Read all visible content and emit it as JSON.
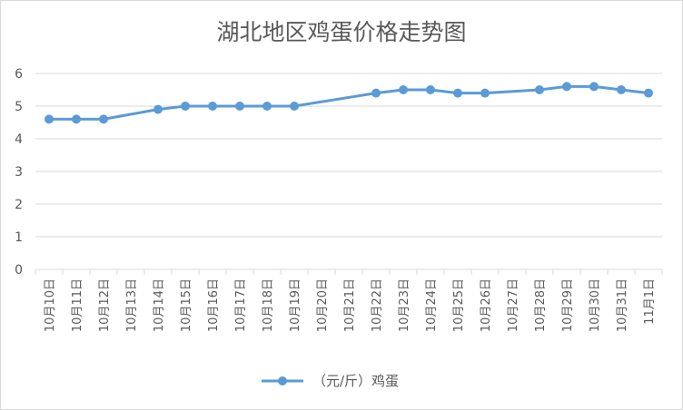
{
  "chart_data": {
    "type": "line",
    "title": "湖北地区鸡蛋价格走势图",
    "xlabel": "",
    "ylabel": "",
    "ylim": [
      0,
      6
    ],
    "yticks": [
      0,
      1,
      2,
      3,
      4,
      5,
      6
    ],
    "grid": true,
    "legend_position": "bottom",
    "categories": [
      "10月10日",
      "10月11日",
      "10月12日",
      "10月13日",
      "10月14日",
      "10月15日",
      "10月16日",
      "10月17日",
      "10月18日",
      "10月19日",
      "10月20日",
      "10月21日",
      "10月22日",
      "10月23日",
      "10月24日",
      "10月25日",
      "10月26日",
      "10月27日",
      "10月28日",
      "10月29日",
      "10月30日",
      "10月31日",
      "11月1日"
    ],
    "series": [
      {
        "name": "（元/斤）鸡蛋",
        "color": "#5b9bd5",
        "values": [
          4.6,
          4.6,
          4.6,
          null,
          4.9,
          5.0,
          5.0,
          5.0,
          5.0,
          5.0,
          null,
          null,
          5.4,
          5.5,
          5.5,
          5.4,
          5.4,
          null,
          5.5,
          5.6,
          5.6,
          5.5,
          5.4
        ]
      }
    ]
  }
}
